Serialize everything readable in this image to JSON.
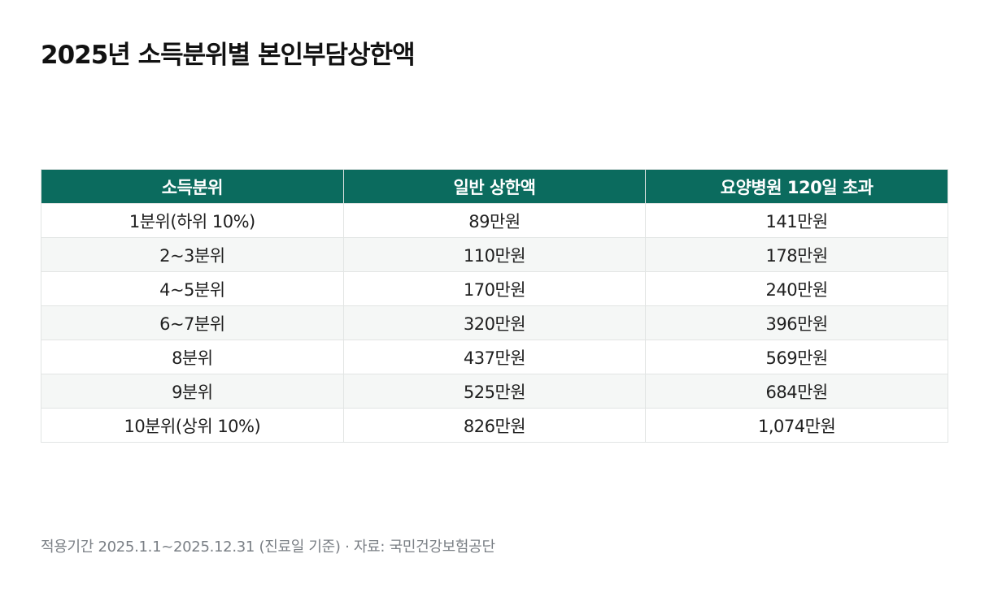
{
  "title": "2025년 소득분위별 본인부담상한액",
  "table": {
    "headers": [
      "소득분위",
      "일반 상한액",
      "요양병원 120일 초과"
    ],
    "rows": [
      [
        "1분위(하위 10%)",
        "89만원",
        "141만원"
      ],
      [
        "2~3분위",
        "110만원",
        "178만원"
      ],
      [
        "4~5분위",
        "170만원",
        "240만원"
      ],
      [
        "6~7분위",
        "320만원",
        "396만원"
      ],
      [
        "8분위",
        "437만원",
        "569만원"
      ],
      [
        "9분위",
        "525만원",
        "684만원"
      ],
      [
        "10분위(상위 10%)",
        "826만원",
        "1,074만원"
      ]
    ]
  },
  "footnote": "적용기간 2025.1.1~2025.12.31 (진료일 기준) · 자료: 국민건강보험공단",
  "colors": {
    "header_bg": "#0b6b5e",
    "header_text": "#ffffff",
    "alt_row_bg": "#f5f7f6",
    "footnote_text": "#7a7f85"
  }
}
